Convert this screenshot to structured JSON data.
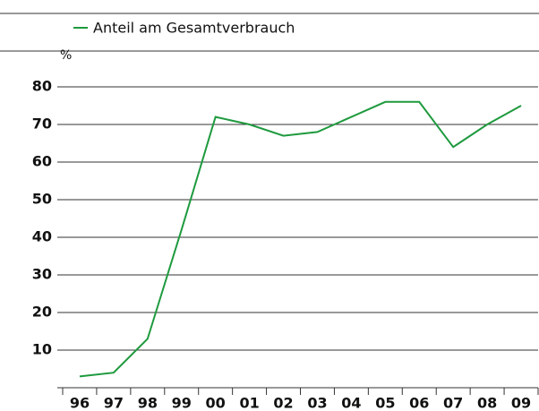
{
  "chart_data": {
    "type": "line",
    "y_unit": "%",
    "categories": [
      "96",
      "97",
      "98",
      "99",
      "00",
      "01",
      "02",
      "03",
      "04",
      "05",
      "06",
      "07",
      "08",
      "09"
    ],
    "series": [
      {
        "name": "Anteil am Gesamtverbrauch",
        "color": "#1e9a3e",
        "values": [
          3,
          4,
          13,
          42,
          72,
          70,
          67,
          68,
          72,
          76,
          76,
          64,
          70,
          75
        ]
      }
    ],
    "ylim": [
      0,
      80
    ],
    "yticks": [
      10,
      20,
      30,
      40,
      50,
      60,
      70,
      80
    ],
    "grid": true
  }
}
